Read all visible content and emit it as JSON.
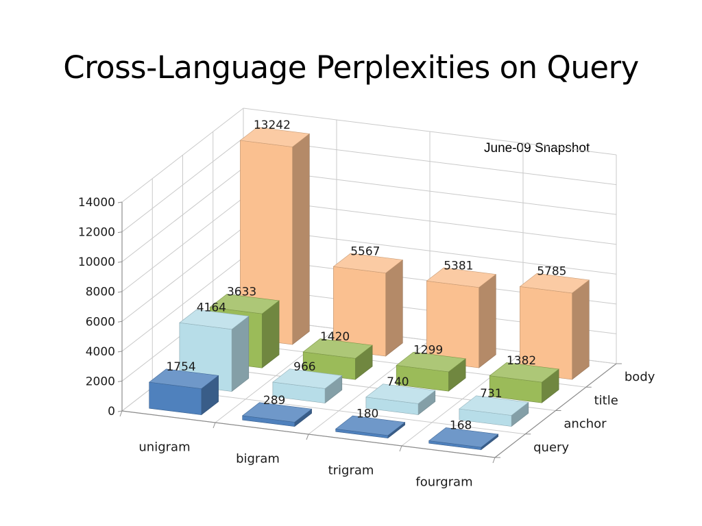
{
  "slide": {
    "title": "Cross-Language Perplexities on Query",
    "subtitle": "June-09 Snapshot"
  },
  "chart_data": {
    "type": "bar",
    "variant": "3d-column",
    "categories": [
      "unigram",
      "bigram",
      "trigram",
      "fourgram"
    ],
    "series": [
      {
        "name": "query",
        "color": "#4f81bd",
        "values": [
          1754,
          289,
          180,
          168
        ]
      },
      {
        "name": "anchor",
        "color": "#b7dde8",
        "values": [
          4164,
          966,
          740,
          731
        ]
      },
      {
        "name": "title",
        "color": "#9bbb59",
        "values": [
          3633,
          1420,
          1299,
          1382
        ]
      },
      {
        "name": "body",
        "color": "#fac090",
        "values": [
          13242,
          5567,
          5381,
          5785
        ]
      }
    ],
    "ylim": [
      0,
      14000
    ],
    "yticks": [
      "0",
      "2000",
      "4000",
      "6000",
      "8000",
      "10000",
      "12000",
      "14000"
    ],
    "grid": true,
    "data_labels": true
  }
}
